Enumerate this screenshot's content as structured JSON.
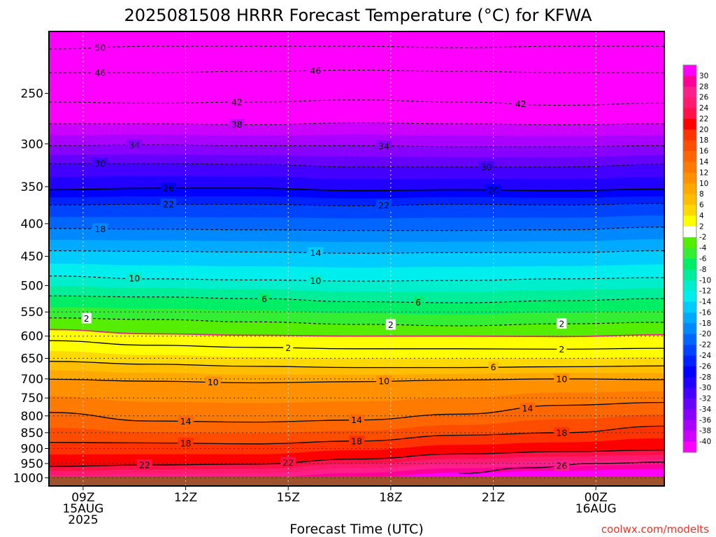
{
  "chart_data": {
    "type": "heatmap",
    "title": "2025081508 HRRR Forecast Temperature (°C) for KFWA",
    "xlabel": "Forecast Time (UTC)",
    "ylabel": "",
    "credit": "coolwx.com/modelts",
    "y_scale": "log",
    "y_axis": "pressure (hPa), inverted",
    "ylim": [
      1030,
      200
    ],
    "y_ticks": [
      250,
      300,
      350,
      400,
      450,
      500,
      550,
      600,
      650,
      700,
      750,
      800,
      850,
      900,
      950,
      1000
    ],
    "x_ticks": [
      {
        "hour": 0,
        "line1": "09Z",
        "line2": "15AUG",
        "line3": "2025"
      },
      {
        "hour": 3,
        "line1": "12Z",
        "line2": "",
        "line3": ""
      },
      {
        "hour": 6,
        "line1": "15Z",
        "line2": "",
        "line3": ""
      },
      {
        "hour": 9,
        "line1": "18Z",
        "line2": "",
        "line3": ""
      },
      {
        "hour": 12,
        "line1": "21Z",
        "line2": "",
        "line3": ""
      },
      {
        "hour": 15,
        "line1": "00Z",
        "line2": "16AUG",
        "line3": ""
      }
    ],
    "xlim_hours": [
      -1,
      17
    ],
    "grid": true,
    "colorbar": {
      "position": "right",
      "labels": [
        30,
        28,
        26,
        24,
        22,
        20,
        18,
        16,
        14,
        12,
        10,
        8,
        6,
        4,
        2,
        -2,
        -4,
        -6,
        -8,
        -10,
        -12,
        -14,
        -16,
        -18,
        -20,
        -22,
        -24,
        -26,
        -28,
        -30,
        -32,
        -34,
        -36,
        -38,
        -40
      ],
      "colors": [
        "#ff00ff",
        "#ff0099",
        "#ff1f8a",
        "#ff1a70",
        "#ff1046",
        "#ff0000",
        "#ff3300",
        "#ff4d00",
        "#ff6600",
        "#ff7a00",
        "#ff9000",
        "#ffa800",
        "#ffbf00",
        "#ffd900",
        "#ffff00",
        "#ffffff",
        "#55ee00",
        "#33ee33",
        "#00ee66",
        "#00ee99",
        "#00eecc",
        "#00eeee",
        "#00ccff",
        "#00aaff",
        "#0088ff",
        "#0066ff",
        "#0044ff",
        "#0022ff",
        "#0000ff",
        "#2200ff",
        "#4400ff",
        "#6600ff",
        "#8800ff",
        "#aa00ff",
        "#cc00ff",
        "#ff00ff"
      ]
    },
    "ground_color": "#a0522d",
    "contours": [
      {
        "value": -50,
        "label": "50",
        "points": [
          [
            -1,
            213
          ],
          [
            2,
            211
          ],
          [
            5,
            211
          ],
          [
            8,
            211
          ],
          [
            11,
            212
          ],
          [
            14,
            211
          ],
          [
            17,
            211
          ]
        ],
        "style": "dashed",
        "labels_at": [
          0.5
        ]
      },
      {
        "value": -46,
        "label": "46",
        "points": [
          [
            -1,
            232
          ],
          [
            2,
            232
          ],
          [
            5,
            231
          ],
          [
            8,
            230
          ],
          [
            11,
            231
          ],
          [
            14,
            232
          ],
          [
            17,
            232
          ]
        ],
        "style": "dashed",
        "labels_at": [
          0.5,
          6.8
        ]
      },
      {
        "value": -42,
        "label": "42",
        "points": [
          [
            -1,
            258
          ],
          [
            2,
            259
          ],
          [
            5,
            258
          ],
          [
            8,
            256
          ],
          [
            11,
            258
          ],
          [
            14,
            261
          ],
          [
            17,
            259
          ]
        ],
        "style": "dashed",
        "labels_at": [
          4.5,
          12.8
        ]
      },
      {
        "value": -38,
        "label": "38",
        "points": [
          [
            -1,
            279
          ],
          [
            2,
            279
          ],
          [
            5,
            280
          ],
          [
            8,
            278
          ],
          [
            11,
            279
          ],
          [
            14,
            280
          ],
          [
            17,
            279
          ]
        ],
        "style": "dashed",
        "labels_at": [
          4.5
        ]
      },
      {
        "value": -34,
        "label": "34",
        "points": [
          [
            -1,
            302
          ],
          [
            2,
            301
          ],
          [
            5,
            302
          ],
          [
            8,
            302
          ],
          [
            11,
            303
          ],
          [
            14,
            303
          ],
          [
            17,
            302
          ]
        ],
        "style": "dashed",
        "labels_at": [
          1.5,
          8.8
        ]
      },
      {
        "value": -30,
        "label": "30",
        "points": [
          [
            -1,
            322
          ],
          [
            2,
            322
          ],
          [
            5,
            323
          ],
          [
            8,
            326
          ],
          [
            11,
            326
          ],
          [
            14,
            326
          ],
          [
            17,
            323
          ]
        ],
        "style": "dashed",
        "labels_at": [
          0.5,
          11.8
        ]
      },
      {
        "value": -26,
        "label": "26",
        "points": [
          [
            -1,
            354
          ],
          [
            2,
            352
          ],
          [
            5,
            352
          ],
          [
            8,
            355
          ],
          [
            11,
            354
          ],
          [
            14,
            355
          ],
          [
            17,
            353
          ]
        ],
        "style": "solid-dark",
        "labels_at": [
          2.5,
          12
        ]
      },
      {
        "value": -22,
        "label": "22",
        "points": [
          [
            -1,
            374
          ],
          [
            2,
            373
          ],
          [
            5,
            373
          ],
          [
            8,
            375
          ],
          [
            11,
            373
          ],
          [
            14,
            374
          ],
          [
            17,
            372
          ]
        ],
        "style": "dashed",
        "labels_at": [
          2.5,
          8.8
        ]
      },
      {
        "value": -18,
        "label": "18",
        "points": [
          [
            -1,
            407
          ],
          [
            2,
            408
          ],
          [
            5,
            409
          ],
          [
            8,
            410
          ],
          [
            11,
            410
          ],
          [
            14,
            409
          ],
          [
            17,
            405
          ]
        ],
        "style": "dashed",
        "labels_at": [
          0.5
        ]
      },
      {
        "value": -14,
        "label": "14",
        "points": [
          [
            -1,
            441
          ],
          [
            2,
            442
          ],
          [
            5,
            443
          ],
          [
            8,
            445
          ],
          [
            11,
            444
          ],
          [
            14,
            444
          ],
          [
            17,
            441
          ]
        ],
        "style": "dashed",
        "labels_at": [
          6.8
        ]
      },
      {
        "value": -10,
        "label": "10",
        "points": [
          [
            -1,
            483
          ],
          [
            2,
            488
          ],
          [
            5,
            490
          ],
          [
            8,
            492
          ],
          [
            11,
            491
          ],
          [
            14,
            488
          ],
          [
            17,
            486
          ]
        ],
        "style": "dashed",
        "labels_at": [
          1.5,
          6.8
        ]
      },
      {
        "value": -6,
        "label": "6",
        "points": [
          [
            -1,
            519
          ],
          [
            2,
            521
          ],
          [
            5,
            524
          ],
          [
            8,
            530
          ],
          [
            11,
            532
          ],
          [
            14,
            528
          ],
          [
            17,
            524
          ]
        ],
        "style": "dashed",
        "labels_at": [
          5.3,
          9.8
        ]
      },
      {
        "value": -2,
        "label": "2",
        "points": [
          [
            -1,
            562
          ],
          [
            2,
            565
          ],
          [
            5,
            570
          ],
          [
            8,
            575
          ],
          [
            11,
            578
          ],
          [
            14,
            574
          ],
          [
            17,
            571
          ]
        ],
        "style": "dashed",
        "labels_at": [
          0.1,
          9,
          14
        ]
      },
      {
        "value": 0,
        "label": "",
        "points": [
          [
            -1,
            586
          ],
          [
            2,
            595
          ],
          [
            5,
            598
          ],
          [
            8,
            600
          ],
          [
            11,
            600
          ],
          [
            14,
            601
          ],
          [
            17,
            597
          ]
        ],
        "style": "magenta",
        "labels_at": []
      },
      {
        "value": 2,
        "label": "2",
        "points": [
          [
            -1,
            610
          ],
          [
            2,
            620
          ],
          [
            5,
            625
          ],
          [
            8,
            628
          ],
          [
            11,
            628
          ],
          [
            14,
            629
          ],
          [
            17,
            627
          ]
        ],
        "style": "solid",
        "labels_at": [
          6,
          14
        ]
      },
      {
        "value": 6,
        "label": "6",
        "points": [
          [
            -1,
            657
          ],
          [
            2,
            664
          ],
          [
            5,
            669
          ],
          [
            8,
            672
          ],
          [
            11,
            672
          ],
          [
            14,
            670
          ],
          [
            17,
            668
          ]
        ],
        "style": "solid",
        "labels_at": [
          12
        ]
      },
      {
        "value": 10,
        "label": "10",
        "points": [
          [
            -1,
            701
          ],
          [
            2,
            706
          ],
          [
            5,
            710
          ],
          [
            8,
            707
          ],
          [
            11,
            703
          ],
          [
            14,
            700
          ],
          [
            17,
            702
          ]
        ],
        "style": "solid",
        "labels_at": [
          3.8,
          8.8,
          14
        ]
      },
      {
        "value": 14,
        "label": "14",
        "points": [
          [
            -1,
            790
          ],
          [
            2,
            815
          ],
          [
            5,
            818
          ],
          [
            8,
            812
          ],
          [
            11,
            795
          ],
          [
            14,
            770
          ],
          [
            17,
            762
          ]
        ],
        "style": "solid",
        "labels_at": [
          3,
          8,
          13
        ]
      },
      {
        "value": 18,
        "label": "18",
        "points": [
          [
            -1,
            880
          ],
          [
            2,
            882
          ],
          [
            5,
            885
          ],
          [
            8,
            876
          ],
          [
            11,
            858
          ],
          [
            14,
            850
          ],
          [
            17,
            830
          ]
        ],
        "style": "solid",
        "labels_at": [
          3,
          8,
          14
        ]
      },
      {
        "value": 22,
        "label": "22",
        "points": [
          [
            -1,
            960
          ],
          [
            2,
            955
          ],
          [
            5,
            952
          ],
          [
            8,
            935
          ],
          [
            11,
            918
          ],
          [
            14,
            910
          ],
          [
            17,
            905
          ]
        ],
        "style": "solid",
        "labels_at": [
          1.8,
          6
        ]
      },
      {
        "value": 26,
        "label": "26",
        "points": [
          [
            11,
            985
          ],
          [
            13,
            965
          ],
          [
            15,
            950
          ],
          [
            17,
            945
          ]
        ],
        "style": "solid",
        "labels_at": [
          14
        ]
      }
    ]
  }
}
